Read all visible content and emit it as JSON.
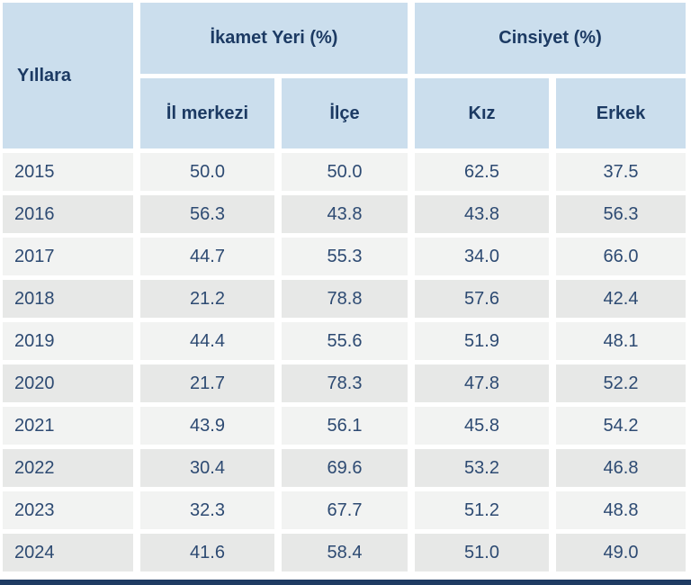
{
  "table": {
    "year_header": "Yıllara",
    "groups": [
      {
        "label": "İkamet Yeri (%)"
      },
      {
        "label": "Cinsiyet (%)"
      }
    ],
    "columns": [
      "İl merkezi",
      "İlçe",
      "Kız",
      "Erkek"
    ],
    "rows": [
      {
        "year": "2015",
        "values": [
          "50.0",
          "50.0",
          "62.5",
          "37.5"
        ]
      },
      {
        "year": "2016",
        "values": [
          "56.3",
          "43.8",
          "43.8",
          "56.3"
        ]
      },
      {
        "year": "2017",
        "values": [
          "44.7",
          "55.3",
          "34.0",
          "66.0"
        ]
      },
      {
        "year": "2018",
        "values": [
          "21.2",
          "78.8",
          "57.6",
          "42.4"
        ]
      },
      {
        "year": "2019",
        "values": [
          "44.4",
          "55.6",
          "51.9",
          "48.1"
        ]
      },
      {
        "year": "2020",
        "values": [
          "21.7",
          "78.3",
          "47.8",
          "52.2"
        ]
      },
      {
        "year": "2021",
        "values": [
          "43.9",
          "56.1",
          "45.8",
          "54.2"
        ]
      },
      {
        "year": "2022",
        "values": [
          "30.4",
          "69.6",
          "53.2",
          "46.8"
        ]
      },
      {
        "year": "2023",
        "values": [
          "32.3",
          "67.7",
          "51.2",
          "48.8"
        ]
      },
      {
        "year": "2024",
        "values": [
          "41.6",
          "58.4",
          "51.0",
          "49.0"
        ]
      }
    ],
    "colors": {
      "header_bg": "#cbdeed",
      "row_light": "#f2f3f2",
      "row_dark": "#e7e8e7",
      "header_text": "#1c3a63",
      "data_text": "#2d4a72",
      "bottom_bar": "#1f3b63"
    }
  },
  "chart_data": {
    "type": "table",
    "title": "",
    "row_header": "Yıllara",
    "column_groups": [
      "İkamet Yeri (%)",
      "Cinsiyet (%)"
    ],
    "categories": [
      "2015",
      "2016",
      "2017",
      "2018",
      "2019",
      "2020",
      "2021",
      "2022",
      "2023",
      "2024"
    ],
    "series": [
      {
        "name": "İkamet Yeri (%) - İl merkezi",
        "values": [
          50.0,
          56.3,
          44.7,
          21.2,
          44.4,
          21.7,
          43.9,
          30.4,
          32.3,
          41.6
        ]
      },
      {
        "name": "İkamet Yeri (%) - İlçe",
        "values": [
          50.0,
          43.8,
          55.3,
          78.8,
          55.6,
          78.3,
          56.1,
          69.6,
          67.7,
          58.4
        ]
      },
      {
        "name": "Cinsiyet (%) - Kız",
        "values": [
          62.5,
          43.8,
          34.0,
          57.6,
          51.9,
          47.8,
          45.8,
          53.2,
          51.2,
          51.0
        ]
      },
      {
        "name": "Cinsiyet (%) - Erkek",
        "values": [
          37.5,
          56.3,
          66.0,
          42.4,
          48.1,
          52.2,
          54.2,
          46.8,
          48.8,
          49.0
        ]
      }
    ]
  }
}
